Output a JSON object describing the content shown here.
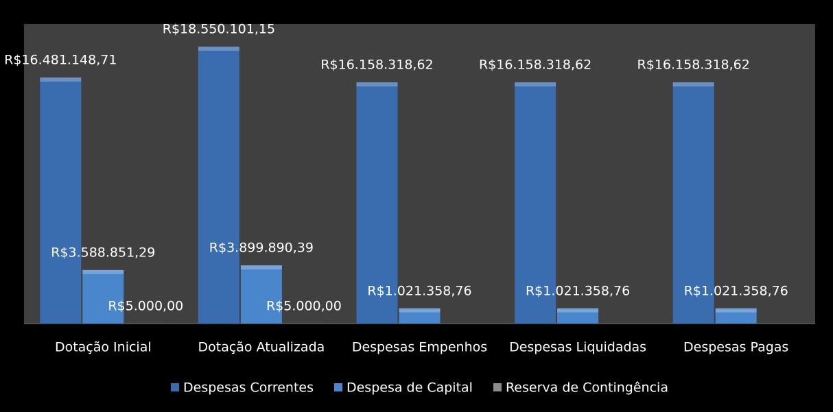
{
  "chart_data": {
    "type": "bar",
    "categories": [
      "Dotação Inicial",
      "Dotação Atualizada",
      "Despesas Empenhos",
      "Despesas Liquidadas",
      "Despesas Pagas"
    ],
    "series": [
      {
        "name": "Despesas Correntes",
        "color": "#3a6db0",
        "values": [
          16481148.71,
          18550101.15,
          16158318.62,
          16158318.62,
          16158318.62
        ],
        "value_labels": [
          "R$16.481.148,71",
          "R$18.550.101,15",
          "R$16.158.318,62",
          "R$16.158.318,62",
          "R$16.158.318,62"
        ]
      },
      {
        "name": "Despesa de Capital",
        "color": "#4a86cc",
        "values": [
          3588851.29,
          3899890.39,
          1021358.76,
          1021358.76,
          1021358.76
        ],
        "value_labels": [
          "R$3.588.851,29",
          "R$3.899.890,39",
          "R$1.021.358,76",
          "R$1.021.358,76",
          "R$1.021.358,76"
        ]
      },
      {
        "name": "Reserva de Contingência",
        "color": "#8c8c8c",
        "values": [
          5000.0,
          5000.0,
          null,
          null,
          null
        ],
        "value_labels": [
          "R$5.000,00",
          "R$5.000,00",
          null,
          null,
          null
        ]
      }
    ],
    "legend": "bottom"
  }
}
